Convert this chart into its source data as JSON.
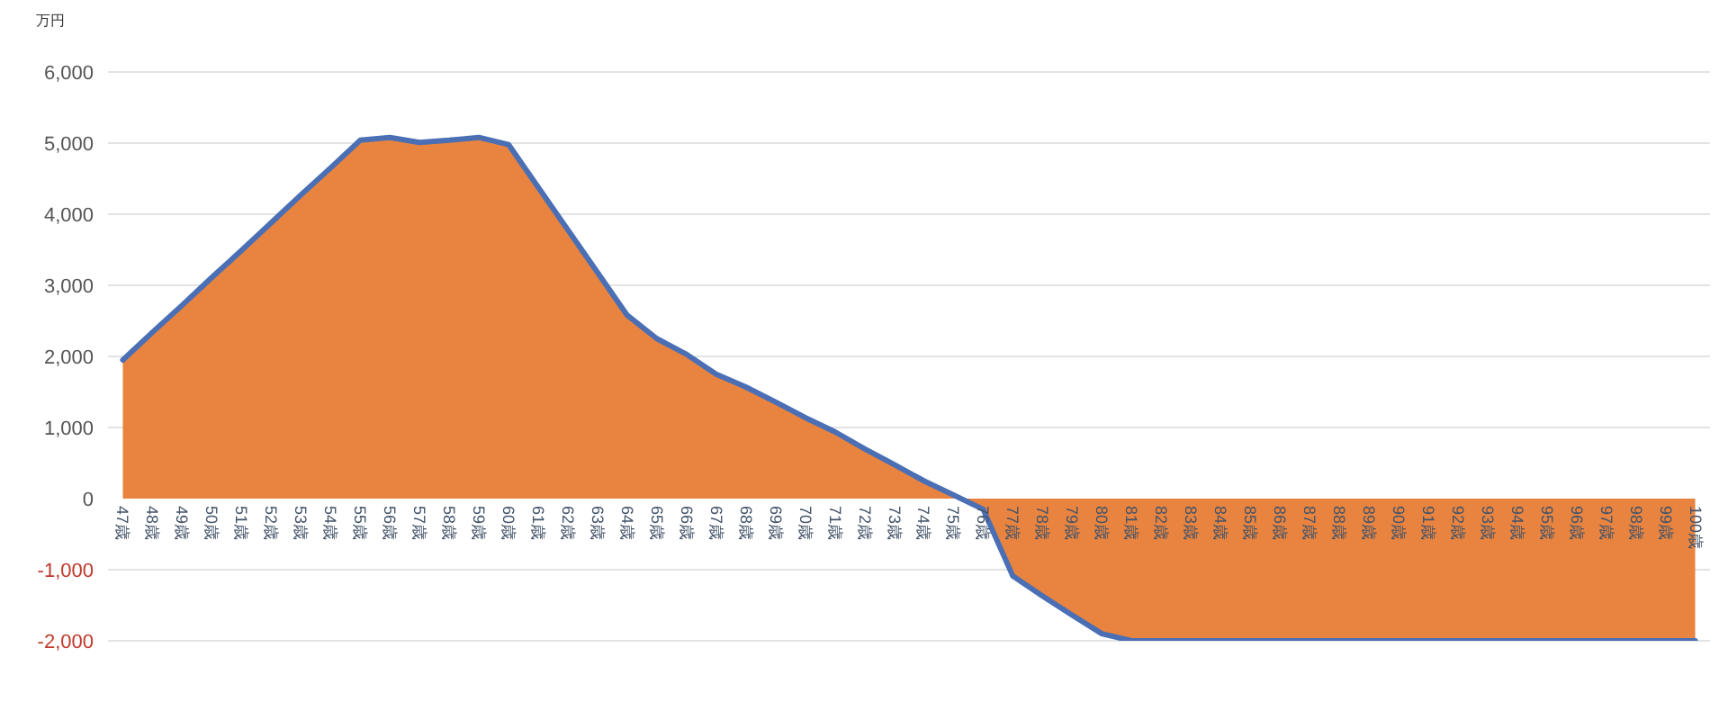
{
  "chart_data": {
    "type": "area",
    "ylabel": "万円",
    "categories": [
      "47歳",
      "48歳",
      "49歳",
      "50歳",
      "51歳",
      "52歳",
      "53歳",
      "54歳",
      "55歳",
      "56歳",
      "57歳",
      "58歳",
      "59歳",
      "60歳",
      "61歳",
      "62歳",
      "63歳",
      "64歳",
      "65歳",
      "66歳",
      "67歳",
      "68歳",
      "69歳",
      "70歳",
      "71歳",
      "72歳",
      "73歳",
      "74歳",
      "75歳",
      "76歳",
      "77歳",
      "78歳",
      "79歳",
      "80歳",
      "81歳",
      "82歳",
      "83歳",
      "84歳",
      "85歳",
      "86歳",
      "87歳",
      "88歳",
      "89歳",
      "90歳",
      "91歳",
      "92歳",
      "93歳",
      "94歳",
      "95歳",
      "96歳",
      "97歳",
      "98歳",
      "99歳",
      "100歳"
    ],
    "series": [
      {
        "color": "#e8843f",
        "values": [
          1950,
          2340,
          2720,
          3110,
          3490,
          3880,
          4270,
          4650,
          5040,
          5080,
          5010,
          5040,
          5080,
          4980,
          4380,
          3780,
          3180,
          2580,
          2250,
          2030,
          1750,
          1570,
          1360,
          1140,
          940,
          700,
          480,
          250,
          50,
          -150,
          -1090,
          -1370,
          -1640,
          -1900,
          -2000,
          -2000,
          -2000,
          -2000,
          -2000,
          -2000,
          -2000,
          -2000,
          -2000,
          -2000,
          -2000,
          -2000,
          -2000,
          -2000,
          -2000,
          -2000,
          -2000,
          -2000,
          -2000,
          -2000
        ]
      }
    ],
    "ylim": [
      -2000,
      6000
    ],
    "yticks": [
      {
        "value": -2000,
        "label": "-2,000"
      },
      {
        "value": -1000,
        "label": "-1,000"
      },
      0,
      {
        "value": 1000,
        "label": "1,000"
      },
      {
        "value": 2000,
        "label": "2,000"
      },
      {
        "value": 3000,
        "label": "3,000"
      },
      {
        "value": 4000,
        "label": "4,000"
      },
      {
        "value": 5000,
        "label": "5,000"
      },
      {
        "value": 6000,
        "label": "6,000"
      }
    ],
    "grid": "y"
  }
}
